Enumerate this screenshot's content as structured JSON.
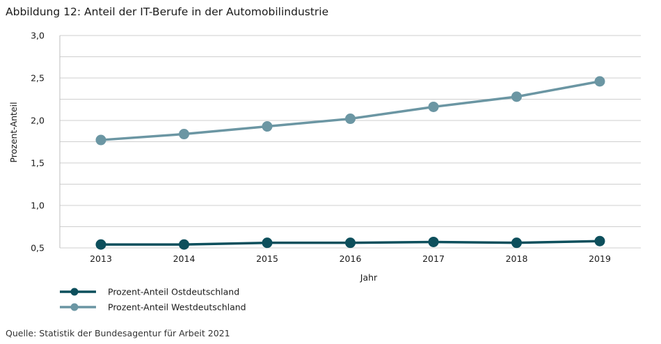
{
  "title": "Abbildung 12: Anteil der IT-Berufe in der Automobilindustrie",
  "source": "Quelle: Statistik der Bundesagentur für Arbeit 2021",
  "chart_data": {
    "type": "line",
    "title": "Abbildung 12: Anteil der IT-Berufe in der Automobilindustrie",
    "xlabel": "Jahr",
    "ylabel": "Prozent-Anteil",
    "x": [
      "2013",
      "2014",
      "2015",
      "2016",
      "2017",
      "2018",
      "2019"
    ],
    "ylim": [
      0.5,
      3.0
    ],
    "yticks": [
      "0,5",
      "1,0",
      "1,5",
      "2,0",
      "2,5",
      "3,0"
    ],
    "ytick_values": [
      0.5,
      1.0,
      1.5,
      2.0,
      2.5,
      3.0
    ],
    "grid": true,
    "legend_position": "bottom-left",
    "series": [
      {
        "name": "Prozent-Anteil Ostdeutschland",
        "color": "#0d4f5c",
        "values": [
          0.54,
          0.54,
          0.56,
          0.56,
          0.57,
          0.56,
          0.58
        ]
      },
      {
        "name": "Prozent-Anteil Westdeutschland",
        "color": "#6b96a3",
        "values": [
          1.77,
          1.84,
          1.93,
          2.02,
          2.16,
          2.28,
          2.46
        ]
      }
    ]
  }
}
